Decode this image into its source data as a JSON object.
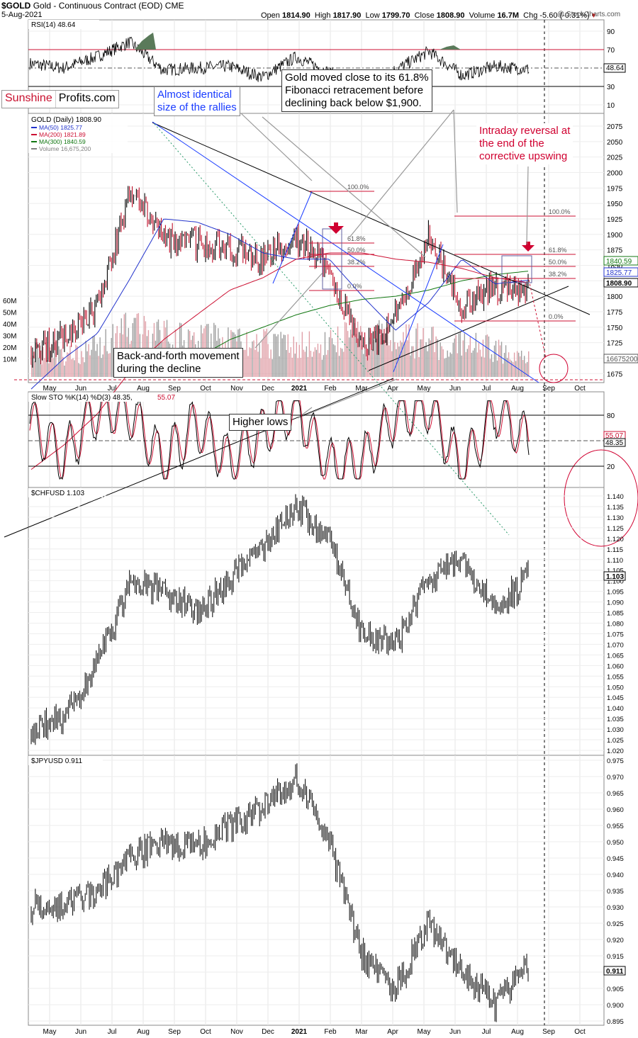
{
  "header": {
    "symbol": "$GOLD",
    "subtitle": "Gold - Continuous Contract (EOD)",
    "exchange": "CME",
    "date": "5-Aug-2021",
    "open_label": "Open",
    "open": "1814.90",
    "high_label": "High",
    "high": "1817.90",
    "low_label": "Low",
    "low": "1799.70",
    "close_label": "Close",
    "close": "1808.90",
    "volume_label": "Volume",
    "volume": "16.7M",
    "chg_label": "Chg",
    "chg": "-5.60 (-0.31%)",
    "watermark": "@ StockCharts.com"
  },
  "logo": {
    "part1": "Sunshine",
    "part2": "Profits.com"
  },
  "annotations": {
    "rallies": "Almost identical\nsize of the rallies",
    "fib": "Gold moved close to its 61.8%\nFibonacci retracement before\ndeclining back below $1,900.",
    "reversal": "Intraday reversal at\nthe end of the\ncorrective upswing",
    "backforth": "Back-and-forth movement\nduring the decline",
    "higher_lows": "Higher lows"
  },
  "colors": {
    "price": "#000000",
    "ma50": "#2233cc",
    "ma200": "#cc1133",
    "ma300": "#117711",
    "vol_up": "#a0a0a0",
    "vol_down": "#e0a0a8",
    "fib_red": "#cc1133",
    "blue_line": "#1a3cff",
    "green_dotted": "#2a9a6a",
    "rsi_fill": "#5a7a5a"
  },
  "x_axis": {
    "months": [
      "May",
      "Jun",
      "Jul",
      "Aug",
      "Sep",
      "Oct",
      "Nov",
      "Dec",
      "2021",
      "Feb",
      "Mar",
      "Apr",
      "May",
      "Jun",
      "Jul",
      "Aug",
      "Sep",
      "Oct"
    ]
  },
  "rsi_panel": {
    "title": "RSI(14) 48.64",
    "ticks": [
      "90",
      "70",
      "50",
      "30",
      "10"
    ],
    "last_value": "48.64"
  },
  "gold_panel": {
    "title": "$GOLD (Daily) 1808.90",
    "legend": [
      {
        "label": "MA(50) 1825.77",
        "color": "#2233cc"
      },
      {
        "label": "MA(200) 1821.89",
        "color": "#cc1133"
      },
      {
        "label": "MA(300) 1840.59",
        "color": "#117711"
      },
      {
        "label": "Volume 16,675,200",
        "color": "#808080"
      }
    ],
    "y_ticks": [
      "2075",
      "2050",
      "2025",
      "2000",
      "1975",
      "1950",
      "1925",
      "1900",
      "1875",
      "1850",
      "1825",
      "1800",
      "1775",
      "1750",
      "1725",
      "1700",
      "1675"
    ],
    "vol_ticks": [
      "60M",
      "50M",
      "40M",
      "30M",
      "20M",
      "10M"
    ],
    "fib_left": [
      "100.0%",
      "61.8%",
      "50.0%",
      "38.2%",
      "0.0%"
    ],
    "fib_right": [
      "100.0%",
      "61.8%",
      "50.0%",
      "38.2%",
      "0.0%"
    ],
    "price_tags": [
      {
        "value": "1840.59",
        "color": "#117711"
      },
      {
        "value": "1825.77",
        "color": "#2233cc"
      },
      {
        "value": "1808.90",
        "color": "#000000"
      },
      {
        "value": "16675200",
        "color": "#555555"
      }
    ]
  },
  "sto_panel": {
    "title_left": "Slow STO %K(14) %D(3) 48.35,",
    "title_right": "55.07",
    "ticks": [
      "80",
      "20"
    ],
    "tags": [
      "55.07",
      "48.35"
    ]
  },
  "chf_panel": {
    "title": "$CHFUSD 1.103",
    "ticks": [
      "1.140",
      "1.135",
      "1.130",
      "1.125",
      "1.120",
      "1.115",
      "1.110",
      "1.105",
      "1.100",
      "1.095",
      "1.090",
      "1.085",
      "1.080",
      "1.075",
      "1.070",
      "1.065",
      "1.060",
      "1.055",
      "1.050",
      "1.045",
      "1.040",
      "1.035",
      "1.030",
      "1.025",
      "1.020"
    ],
    "last": "1.103"
  },
  "jpy_panel": {
    "title": "$JPYUSD 0.911",
    "ticks": [
      "0.975",
      "0.970",
      "0.965",
      "0.960",
      "0.955",
      "0.950",
      "0.945",
      "0.940",
      "0.935",
      "0.930",
      "0.925",
      "0.920",
      "0.915",
      "0.910",
      "0.905",
      "0.900",
      "0.895"
    ],
    "last": "0.911"
  },
  "chart_data": [
    {
      "type": "line",
      "title": "$GOLD (Daily) 1808.90",
      "series": [
        {
          "name": "MA(50) 1825.77"
        },
        {
          "name": "MA(200) 1821.89"
        },
        {
          "name": "MA(300) 1840.59"
        },
        {
          "name": "Volume 16,675,200"
        }
      ],
      "x": [
        "May",
        "Jun",
        "Jul",
        "Aug",
        "Sep",
        "Oct",
        "Nov",
        "Dec",
        "2021",
        "Feb",
        "Mar",
        "Apr",
        "May",
        "Jun",
        "Jul",
        "Aug"
      ],
      "close_monthly": [
        1715,
        1730,
        1780,
        1975,
        1890,
        1885,
        1880,
        1860,
        1900,
        1845,
        1715,
        1765,
        1900,
        1780,
        1815,
        1808.9
      ],
      "ma50_monthly": [
        1650,
        1700,
        1740,
        1830,
        1925,
        1920,
        1900,
        1870,
        1860,
        1860,
        1800,
        1745,
        1790,
        1860,
        1820,
        1825.77
      ],
      "ma200_monthly": [
        1520,
        1560,
        1610,
        1680,
        1730,
        1770,
        1810,
        1830,
        1860,
        1870,
        1870,
        1860,
        1855,
        1845,
        1830,
        1821.89
      ],
      "ma300_monthly": [
        null,
        null,
        null,
        null,
        null,
        1700,
        1730,
        1750,
        1770,
        1785,
        1795,
        1800,
        1810,
        1825,
        1835,
        1840.59
      ],
      "volume_monthly_m": [
        22,
        20,
        25,
        45,
        35,
        30,
        35,
        30,
        30,
        28,
        40,
        35,
        30,
        28,
        25,
        16.7
      ],
      "ylim": [
        1655,
        2090
      ]
    },
    {
      "type": "line",
      "title": "RSI(14) 48.64",
      "x": [
        "May",
        "Jun",
        "Jul",
        "Aug",
        "Sep",
        "Oct",
        "Nov",
        "Dec",
        "2021",
        "Feb",
        "Mar",
        "Apr",
        "May",
        "Jun",
        "Jul",
        "Aug"
      ],
      "values": [
        55,
        50,
        62,
        78,
        48,
        50,
        52,
        40,
        62,
        45,
        35,
        48,
        68,
        42,
        52,
        48.64
      ],
      "ylim": [
        0,
        100
      ]
    },
    {
      "type": "line",
      "title": "Slow STO %K(14) %D(3) 48.35, 55.07",
      "x": [
        "May",
        "Jun",
        "Jul",
        "Aug",
        "Sep",
        "Oct",
        "Nov",
        "Dec",
        "2021",
        "Feb",
        "Mar",
        "Apr",
        "May",
        "Jun",
        "Jul",
        "Aug"
      ],
      "values": [
        75,
        30,
        85,
        85,
        25,
        70,
        25,
        60,
        90,
        20,
        25,
        80,
        90,
        15,
        85,
        48.35
      ],
      "ylim": [
        0,
        100
      ]
    },
    {
      "type": "line",
      "title": "$CHFUSD 1.103",
      "x": [
        "May",
        "Jun",
        "Jul",
        "Aug",
        "Sep",
        "Oct",
        "Nov",
        "Dec",
        "2021",
        "Feb",
        "Mar",
        "Apr",
        "May",
        "Jun",
        "Jul",
        "Aug"
      ],
      "values": [
        1.03,
        1.035,
        1.06,
        1.1,
        1.095,
        1.085,
        1.1,
        1.115,
        1.135,
        1.12,
        1.075,
        1.07,
        1.1,
        1.11,
        1.085,
        1.103
      ],
      "ylim": [
        1.017,
        1.148
      ]
    },
    {
      "type": "line",
      "title": "$JPYUSD 0.911",
      "x": [
        "May",
        "Jun",
        "Jul",
        "Aug",
        "Sep",
        "Oct",
        "Nov",
        "Dec",
        "2021",
        "Feb",
        "Mar",
        "Apr",
        "May",
        "Jun",
        "Jul",
        "Aug"
      ],
      "values": [
        0.93,
        0.93,
        0.935,
        0.945,
        0.95,
        0.948,
        0.955,
        0.96,
        0.97,
        0.95,
        0.915,
        0.905,
        0.925,
        0.91,
        0.9,
        0.911
      ],
      "ylim": [
        0.893,
        0.977
      ]
    }
  ]
}
